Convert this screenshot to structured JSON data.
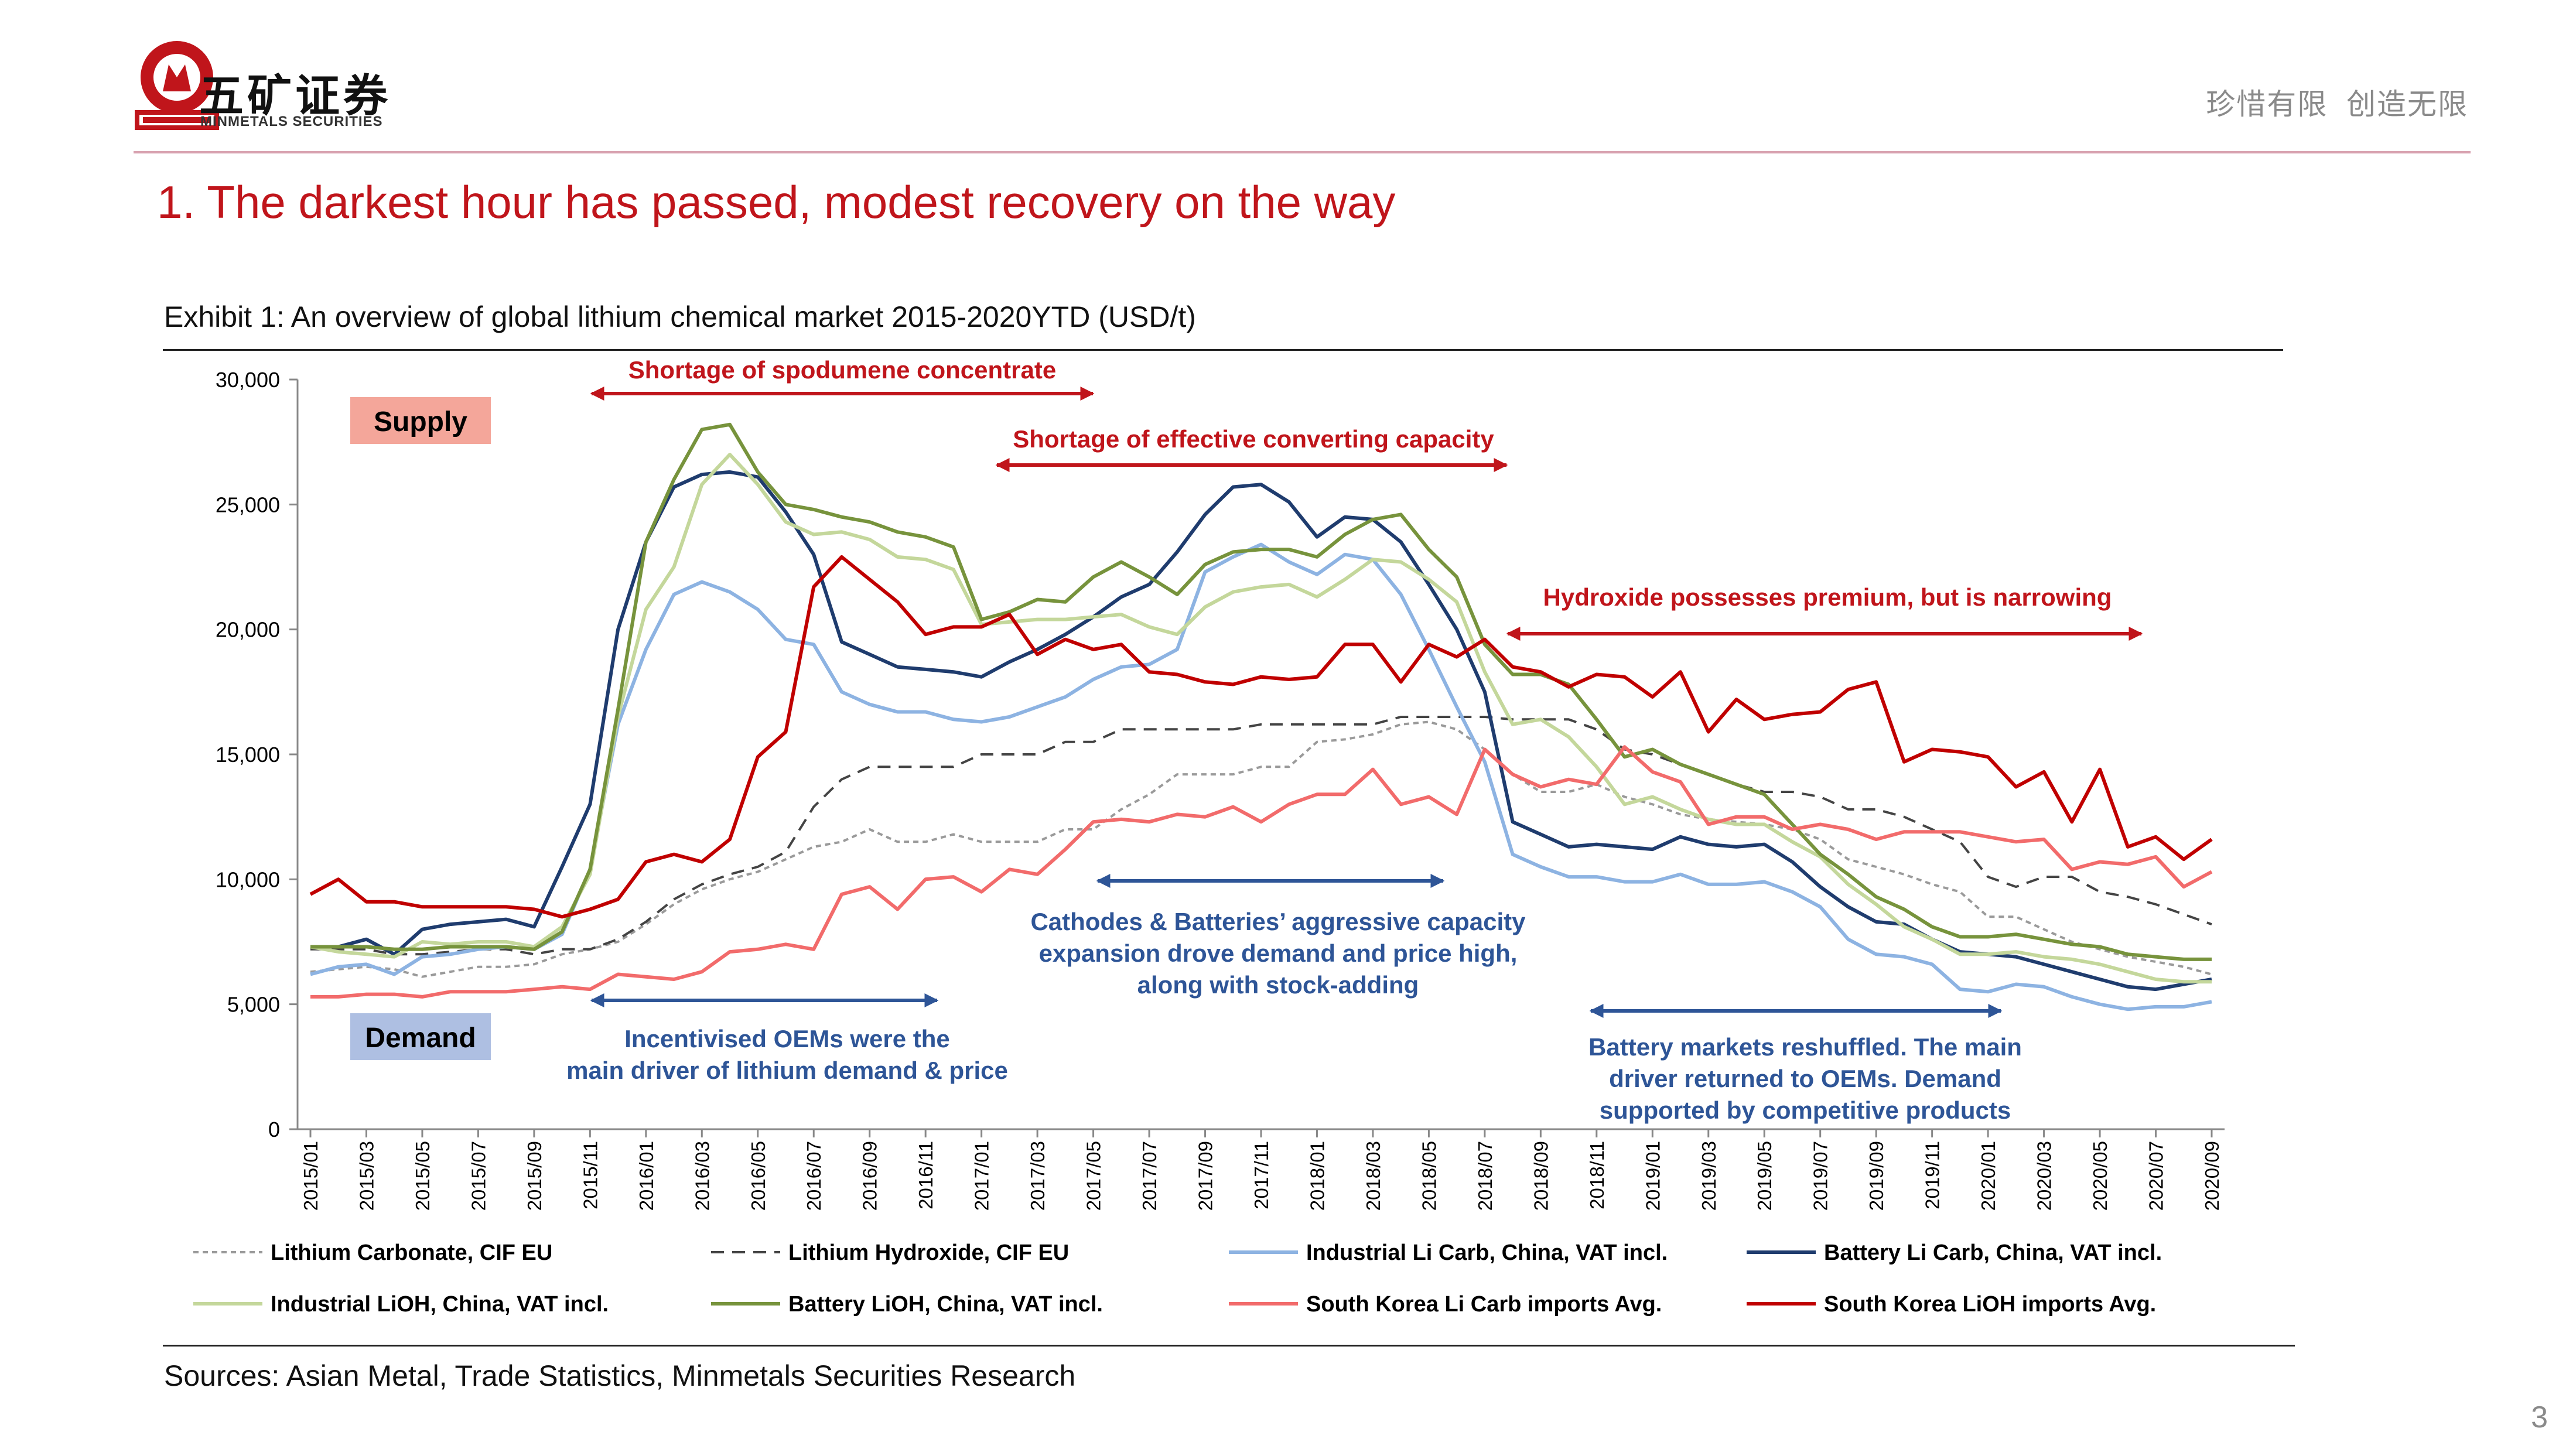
{
  "header": {
    "brand_cn": "五矿证券",
    "brand_en": "MINMETALS SECURITIES",
    "slogan": "珍惜有限  创造无限"
  },
  "slide_title": "1. The darkest hour has passed, modest recovery on the way",
  "exhibit_title": "Exhibit 1: An overview of global lithium chemical market 2015-2020YTD (USD/t)",
  "sources": "Sources: Asian Metal, Trade Statistics, Minmetals Securities Research",
  "page_number": "3",
  "colors": {
    "brand_red": "#c0151b",
    "annotation_blue": "#2e5597",
    "supply_box": "#f4a69a",
    "demand_box": "#aebfe2"
  },
  "chart_data": {
    "type": "line",
    "title": "",
    "xlabel": "",
    "ylabel": "",
    "ylim": [
      0,
      30000
    ],
    "yticks": [
      "0",
      "5,000",
      "10,000",
      "15,000",
      "20,000",
      "25,000",
      "30,000"
    ],
    "grid": false,
    "legend_position": "bottom",
    "x": [
      "2015/01",
      "2015/02",
      "2015/03",
      "2015/04",
      "2015/05",
      "2015/06",
      "2015/07",
      "2015/08",
      "2015/09",
      "2015/10",
      "2015/11",
      "2015/12",
      "2016/01",
      "2016/02",
      "2016/03",
      "2016/04",
      "2016/05",
      "2016/06",
      "2016/07",
      "2016/08",
      "2016/09",
      "2016/10",
      "2016/11",
      "2016/12",
      "2017/01",
      "2017/02",
      "2017/03",
      "2017/04",
      "2017/05",
      "2017/06",
      "2017/07",
      "2017/08",
      "2017/09",
      "2017/10",
      "2017/11",
      "2017/12",
      "2018/01",
      "2018/02",
      "2018/03",
      "2018/04",
      "2018/05",
      "2018/06",
      "2018/07",
      "2018/08",
      "2018/09",
      "2018/10",
      "2018/11",
      "2018/12",
      "2019/01",
      "2019/02",
      "2019/03",
      "2019/04",
      "2019/05",
      "2019/06",
      "2019/07",
      "2019/08",
      "2019/09",
      "2019/10",
      "2019/11",
      "2019/12",
      "2020/01",
      "2020/02",
      "2020/03",
      "2020/04",
      "2020/05",
      "2020/06",
      "2020/07",
      "2020/08",
      "2020/09"
    ],
    "x_tick_labels": [
      "2015/01",
      "2015/03",
      "2015/05",
      "2015/07",
      "2015/09",
      "2015/11",
      "2016/01",
      "2016/03",
      "2016/05",
      "2016/07",
      "2016/09",
      "2016/11",
      "2017/01",
      "2017/03",
      "2017/05",
      "2017/07",
      "2017/09",
      "2017/11",
      "2018/01",
      "2018/03",
      "2018/05",
      "2018/07",
      "2018/09",
      "2018/11",
      "2019/01",
      "2019/03",
      "2019/05",
      "2019/07",
      "2019/09",
      "2019/11",
      "2020/01",
      "2020/03",
      "2020/05",
      "2020/07",
      "2020/09"
    ],
    "series": [
      {
        "name": "Lithium Carbonate, CIF EU",
        "color": "#9a9a9a",
        "dash": "dot",
        "values": [
          6300,
          6400,
          6500,
          6400,
          6100,
          6300,
          6500,
          6500,
          6600,
          7000,
          7200,
          7500,
          8200,
          9000,
          9600,
          10000,
          10300,
          10800,
          11300,
          11500,
          12000,
          11500,
          11500,
          11800,
          11500,
          11500,
          11500,
          12000,
          12000,
          12800,
          13400,
          14200,
          14200,
          14200,
          14500,
          14500,
          15500,
          15600,
          15800,
          16200,
          16300,
          16000,
          15200,
          14200,
          13500,
          13500,
          13800,
          13300,
          13000,
          12600,
          12400,
          12300,
          12200,
          12000,
          11600,
          10800,
          10500,
          10200,
          9800,
          9500,
          8500,
          8500,
          8000,
          7500,
          7200,
          6900,
          6700,
          6500,
          6200
        ]
      },
      {
        "name": "Lithium Hydroxide, CIF EU",
        "color": "#444444",
        "dash": "dash",
        "values": [
          7200,
          7200,
          7200,
          7000,
          7000,
          7100,
          7200,
          7200,
          7000,
          7200,
          7200,
          7600,
          8300,
          9200,
          9800,
          10200,
          10500,
          11100,
          12900,
          14000,
          14500,
          14500,
          14500,
          14500,
          15000,
          15000,
          15000,
          15500,
          15500,
          16000,
          16000,
          16000,
          16000,
          16000,
          16200,
          16200,
          16200,
          16200,
          16200,
          16500,
          16500,
          16500,
          16500,
          16400,
          16400,
          16400,
          16000,
          15200,
          15000,
          14600,
          14200,
          13800,
          13500,
          13500,
          13300,
          12800,
          12800,
          12500,
          12000,
          11500,
          10100,
          9700,
          10100,
          10100,
          9500,
          9300,
          9000,
          8600,
          8200
        ]
      },
      {
        "name": "Industrial Li Carb, China, VAT incl.",
        "color": "#8db3e2",
        "dash": "solid",
        "values": [
          6200,
          6500,
          6600,
          6200,
          6900,
          7000,
          7200,
          7300,
          7200,
          7800,
          10400,
          16200,
          19200,
          21400,
          21900,
          21500,
          20800,
          19600,
          19400,
          17500,
          17000,
          16700,
          16700,
          16400,
          16300,
          16500,
          16900,
          17300,
          18000,
          18500,
          18600,
          19200,
          22300,
          22900,
          23400,
          22700,
          22200,
          23000,
          22800,
          21400,
          19200,
          16900,
          14700,
          11000,
          10500,
          10100,
          10100,
          9900,
          9900,
          10200,
          9800,
          9800,
          9900,
          9500,
          8900,
          7600,
          7000,
          6900,
          6600,
          5600,
          5500,
          5800,
          5700,
          5300,
          5000,
          4800,
          4900,
          4900,
          5100
        ]
      },
      {
        "name": "Battery Li Carb, China, VAT incl.",
        "color": "#1f3c6e",
        "dash": "solid",
        "values": [
          7300,
          7300,
          7600,
          7000,
          8000,
          8200,
          8300,
          8400,
          8100,
          10500,
          13000,
          20000,
          23500,
          25700,
          26200,
          26300,
          26100,
          24700,
          23000,
          19500,
          19000,
          18500,
          18400,
          18300,
          18100,
          18700,
          19200,
          19800,
          20500,
          21300,
          21800,
          23100,
          24600,
          25700,
          25800,
          25100,
          23700,
          24500,
          24400,
          23500,
          21800,
          20000,
          17500,
          12300,
          11800,
          11300,
          11400,
          11300,
          11200,
          11700,
          11400,
          11300,
          11400,
          10700,
          9700,
          8900,
          8300,
          8200,
          7600,
          7100,
          7000,
          6900,
          6600,
          6300,
          6000,
          5700,
          5600,
          5800,
          6000
        ]
      },
      {
        "name": "Industrial LiOH, China, VAT incl.",
        "color": "#c4d79b",
        "dash": "solid",
        "values": [
          7300,
          7100,
          7000,
          6900,
          7500,
          7400,
          7500,
          7500,
          7300,
          8100,
          10200,
          16500,
          20800,
          22500,
          25800,
          27000,
          25800,
          24300,
          23800,
          23900,
          23600,
          22900,
          22800,
          22400,
          20200,
          20300,
          20400,
          20400,
          20500,
          20600,
          20100,
          19800,
          20900,
          21500,
          21700,
          21800,
          21300,
          22000,
          22800,
          22700,
          22000,
          21100,
          18300,
          16200,
          16400,
          15700,
          14500,
          13000,
          13300,
          12800,
          12400,
          12200,
          12200,
          11500,
          10900,
          9800,
          9000,
          8100,
          7600,
          7000,
          7000,
          7100,
          6900,
          6800,
          6600,
          6300,
          6000,
          5900,
          5900
        ]
      },
      {
        "name": "Battery LiOH, China, VAT incl.",
        "color": "#77933c",
        "dash": "solid",
        "values": [
          7300,
          7300,
          7300,
          7200,
          7200,
          7300,
          7300,
          7300,
          7200,
          7900,
          10400,
          16800,
          23500,
          26000,
          28000,
          28200,
          26300,
          25000,
          24800,
          24500,
          24300,
          23900,
          23700,
          23300,
          20400,
          20700,
          21200,
          21100,
          22100,
          22700,
          22100,
          21400,
          22600,
          23100,
          23200,
          23200,
          22900,
          23800,
          24400,
          24600,
          23200,
          22100,
          19400,
          18200,
          18200,
          17800,
          16400,
          14900,
          15200,
          14600,
          14200,
          13800,
          13400,
          12200,
          11000,
          10200,
          9300,
          8800,
          8100,
          7700,
          7700,
          7800,
          7600,
          7400,
          7300,
          7000,
          6900,
          6800,
          6800
        ]
      },
      {
        "name": "South Korea Li Carb imports Avg.",
        "color": "#f26b6b",
        "dash": "solid",
        "values": [
          5300,
          5300,
          5400,
          5400,
          5300,
          5500,
          5500,
          5500,
          5600,
          5700,
          5600,
          6200,
          6100,
          6000,
          6300,
          7100,
          7200,
          7400,
          7200,
          9400,
          9700,
          8800,
          10000,
          10100,
          9500,
          10400,
          10200,
          11200,
          12300,
          12400,
          12300,
          12600,
          12500,
          12900,
          12300,
          13000,
          13400,
          13400,
          14400,
          13000,
          13300,
          12600,
          15200,
          14200,
          13700,
          14000,
          13800,
          15300,
          14300,
          13900,
          12200,
          12500,
          12500,
          12000,
          12200,
          12000,
          11600,
          11900,
          11900,
          11900,
          11700,
          11500,
          11600,
          10400,
          10700,
          10600,
          10900,
          9700,
          10300
        ]
      },
      {
        "name": "South Korea LiOH imports Avg.",
        "color": "#c00000",
        "dash": "solid",
        "values": [
          9400,
          10000,
          9100,
          9100,
          8900,
          8900,
          8900,
          8900,
          8800,
          8500,
          8800,
          9200,
          10700,
          11000,
          10700,
          11600,
          14900,
          15900,
          21700,
          22900,
          22000,
          21100,
          19800,
          20100,
          20100,
          20600,
          19000,
          19600,
          19200,
          19400,
          18300,
          18200,
          17900,
          17800,
          18100,
          18000,
          18100,
          19400,
          19400,
          17900,
          19400,
          18900,
          19600,
          18500,
          18300,
          17700,
          18200,
          18100,
          17300,
          18300,
          15900,
          17200,
          16400,
          16600,
          16700,
          17600,
          17900,
          14700,
          15200,
          15100,
          14900,
          13700,
          14300,
          12300,
          14400,
          11300,
          11700,
          10800,
          11600
        ]
      }
    ],
    "annotations": {
      "supply_label": "Supply",
      "demand_label": "Demand",
      "spodumene": "Shortage of spodumene concentrate",
      "converting": "Shortage of effective converting capacity",
      "hydroxide": "Hydroxide possesses premium, but is narrowing",
      "oems_line1": "Incentivised OEMs were the",
      "oems_line2": "main driver of lithium demand & price",
      "cathodes_line1": "Cathodes & Batteries’ aggressive capacity",
      "cathodes_line2": "expansion drove demand and price high,",
      "cathodes_line3": "along with stock-adding",
      "battery_line1": "Battery markets reshuffled. The main",
      "battery_line2": "driver returned to OEMs. Demand",
      "battery_line3": "supported by competitive products"
    }
  }
}
